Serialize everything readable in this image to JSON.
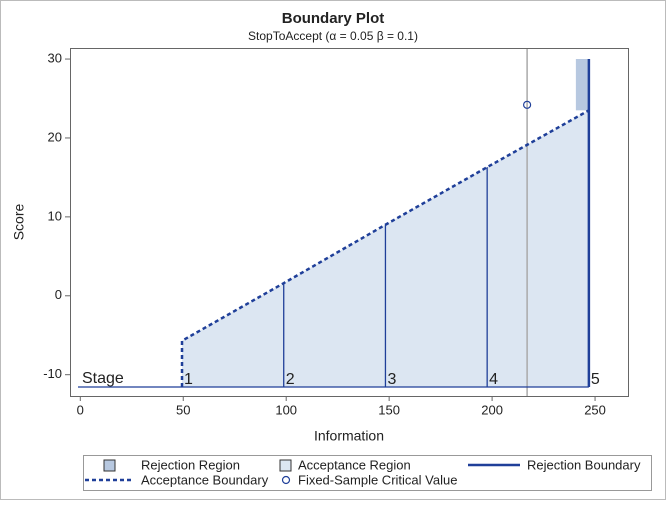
{
  "chart_data": {
    "type": "boundary",
    "title": "Boundary Plot",
    "subtitle": "StopToAccept (α = 0.05  β = 0.1)",
    "xlabel": "Information",
    "ylabel": "Score",
    "xlim": [
      -5,
      266
    ],
    "xticks": [
      0,
      50,
      100,
      150,
      200,
      250
    ],
    "ylim": [
      -12.7,
      31.4
    ],
    "yticks": [
      -10,
      0,
      10,
      20,
      30
    ],
    "stage_label": "Stage",
    "categories": [
      "1",
      "2",
      "3",
      "4",
      "5"
    ],
    "x": [
      49.4,
      98.8,
      148.2,
      197.6,
      247
    ],
    "series": [
      {
        "name": "Acceptance Boundary",
        "color": "#1f3f99",
        "values": [
          -5.7,
          1.6,
          9.0,
          16.3,
          23.5
        ]
      },
      {
        "name": "Rejection Boundary",
        "color": "#1f3f99",
        "values": [
          null,
          null,
          null,
          null,
          23.5
        ]
      },
      {
        "name": "Rejection Region",
        "color": "#b7c8e0"
      },
      {
        "name": "Acceptance Region",
        "color": "#dce6f2"
      },
      {
        "name": "Fixed-Sample Critical Value",
        "color": "#1f3f99",
        "x": [
          217
        ],
        "values": [
          24.2
        ]
      }
    ]
  }
}
